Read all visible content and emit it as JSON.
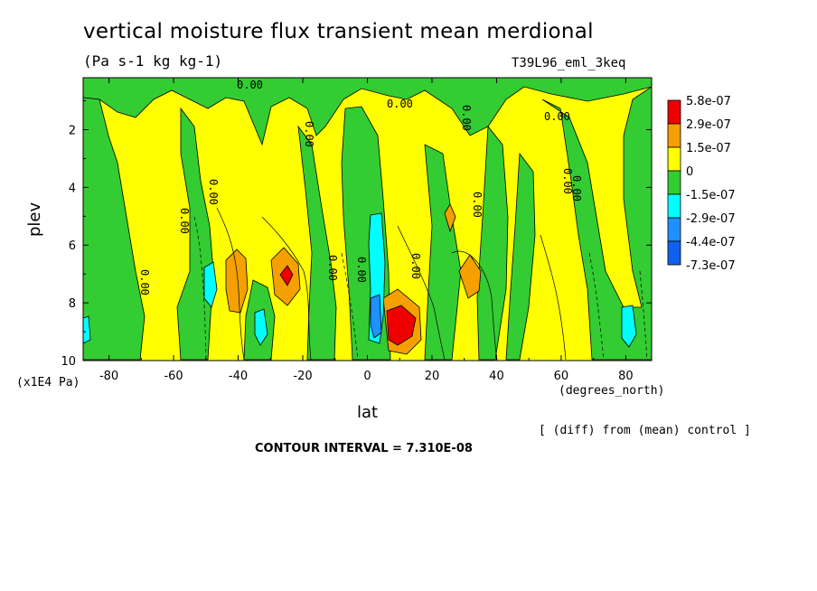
{
  "chart_data": {
    "type": "heatmap",
    "title": "vertical moisture flux transient mean merdional",
    "subtitle": "(Pa s-1 kg kg-1)",
    "run_id": "T39L96_eml_3keq",
    "xlabel": "lat",
    "xunits": "(degrees_north)",
    "ylabel": "plev",
    "yunits": "(x1E4 Pa)",
    "xlim": [
      -88,
      88
    ],
    "ylim": [
      10,
      0.2
    ],
    "x_ticks": [
      "-80",
      "-60",
      "-40",
      "-20",
      "0",
      "20",
      "40",
      "60",
      "80"
    ],
    "x_tick_values": [
      -80,
      -60,
      -40,
      -20,
      0,
      20,
      40,
      60,
      80
    ],
    "y_ticks": [
      "2",
      "4",
      "6",
      "8",
      "10"
    ],
    "y_tick_values": [
      2,
      4,
      6,
      8,
      10
    ],
    "legend": {
      "placement": "right",
      "labels": [
        "5.8e-07",
        "2.9e-07",
        "1.5e-07",
        "0",
        "-1.5e-07",
        "-2.9e-07",
        "-4.4e-07",
        "-7.3e-07"
      ],
      "colors": [
        "#ee0000",
        "#f4a000",
        "#ffff00",
        "#33cc33",
        "#00ffff",
        "#1e90ff",
        "#1060f0"
      ]
    },
    "contour_labels": [
      "0.00",
      "0.00",
      "0.00",
      "0.00",
      "0.00",
      "0.00",
      "0.00",
      "0.00",
      "0.00",
      "0.00",
      "0.00",
      "0.00",
      "0.00",
      "0.00"
    ],
    "note": "[ (diff) from (mean) control ]",
    "contour_interval": "CONTOUR INTERVAL = 7.310E-08"
  }
}
